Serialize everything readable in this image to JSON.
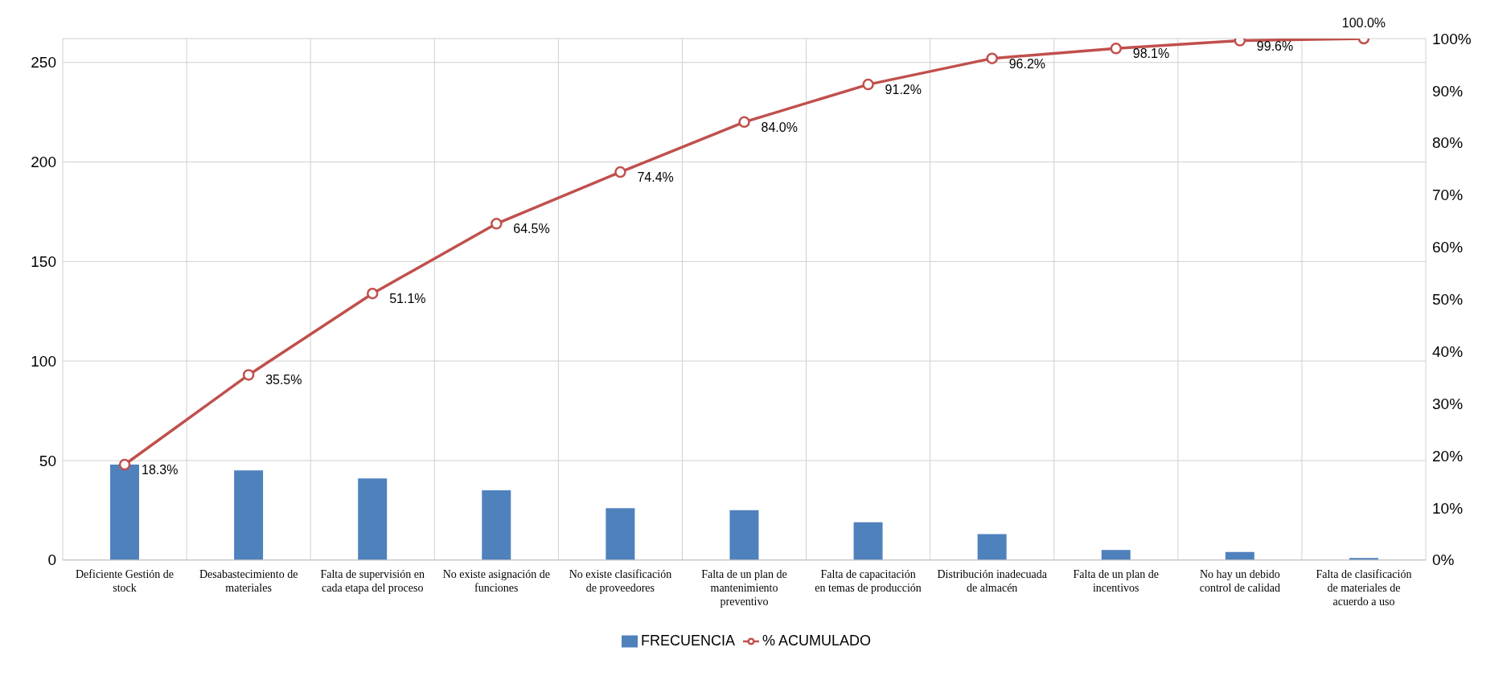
{
  "chart_data": {
    "type": "bar",
    "categories": [
      "Deficiente Gestión de stock",
      "Desabastecimiento de materiales",
      "Falta de supervisión en cada etapa del proceso",
      "No existe asignación de funciones",
      "No existe clasificación de proveedores",
      "Falta de un plan de mantenimiento preventivo",
      "Falta de capacitación en temas de producción",
      "Distribución inadecuada de almacén",
      "Falta de un plan de incentivos",
      "No hay un debido control de calidad",
      "Falta de clasificación de materiales de acuerdo a uso"
    ],
    "series": [
      {
        "name": "FRECUENCIA",
        "color": "#4f81bd",
        "values": [
          48,
          45,
          41,
          35,
          26,
          25,
          19,
          13,
          5,
          4,
          1
        ]
      },
      {
        "name": "% ACUMULADO",
        "type": "line",
        "axis": "y2",
        "color": "#c0504d",
        "marker": "circle",
        "values": [
          18.3,
          35.5,
          51.1,
          64.5,
          74.4,
          84.0,
          91.2,
          96.2,
          98.1,
          99.6,
          100.0
        ],
        "value_labels": [
          "18.3%",
          "35.5%",
          "51.1%",
          "64.5%",
          "74.4%",
          "84.0%",
          "91.2%",
          "96.2%",
          "98.1%",
          "99.6%",
          "100.0%"
        ]
      }
    ],
    "ylim": [
      0,
      262
    ],
    "yticks": [
      0,
      50,
      100,
      150,
      200,
      250
    ],
    "y2lim": [
      0,
      100
    ],
    "y2ticks": [
      {
        "value": 0,
        "label": "0%"
      },
      {
        "value": 10,
        "label": "10%"
      },
      {
        "value": 20,
        "label": "20%"
      },
      {
        "value": 30,
        "label": "30%"
      },
      {
        "value": 40,
        "label": "40%"
      },
      {
        "value": 50,
        "label": "50%"
      },
      {
        "value": 60,
        "label": "60%"
      },
      {
        "value": 70,
        "label": "70%"
      },
      {
        "value": 80,
        "label": "80%"
      },
      {
        "value": 90,
        "label": "90%"
      },
      {
        "value": 100,
        "label": "100%"
      }
    ],
    "grid": true,
    "legend": "bottom"
  }
}
